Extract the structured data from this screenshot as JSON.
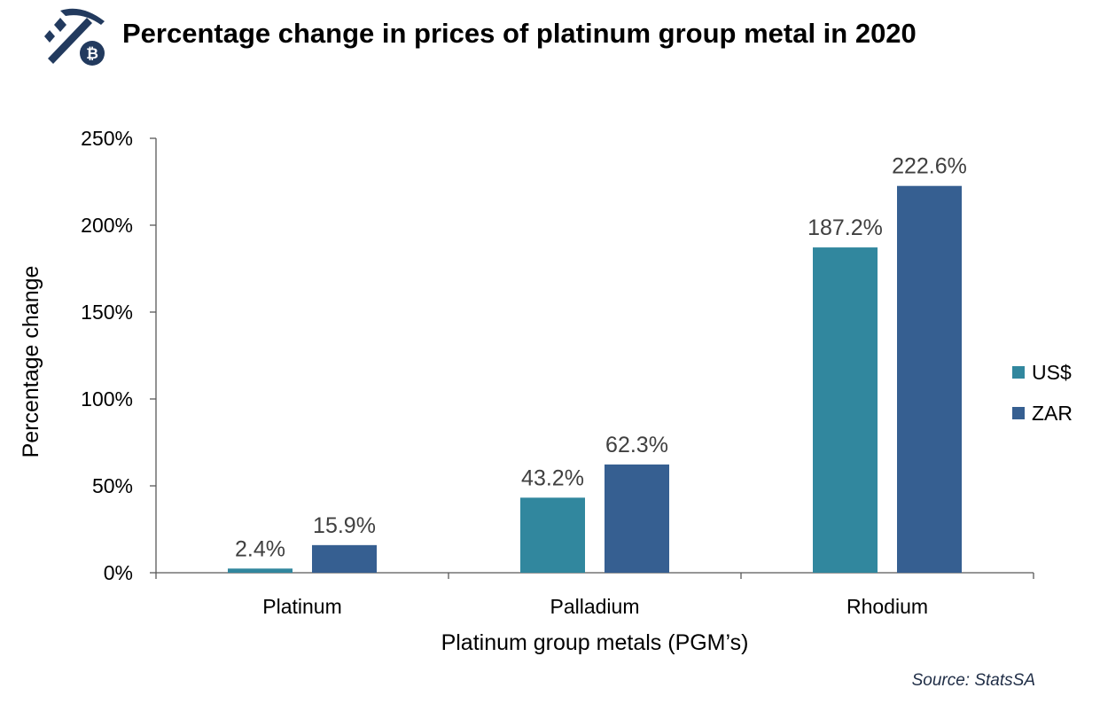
{
  "page": {
    "title": "Percentage change in prices of platinum group metal in 2020",
    "source": "Source: StatsSA",
    "logo_icon": "pickaxe-bitcoin-logo-icon"
  },
  "colors": {
    "usd": "#31879E",
    "zar": "#365F91",
    "axis": "#595959",
    "label": "#404040",
    "logo": "#223A5E"
  },
  "chart_data": {
    "type": "bar",
    "categories": [
      "Platinum",
      "Palladium",
      "Rhodium"
    ],
    "series": [
      {
        "name": "US$",
        "values": [
          2.4,
          43.2,
          187.2
        ],
        "labels": [
          "2.4%",
          "43.2%",
          "187.2%"
        ]
      },
      {
        "name": "ZAR",
        "values": [
          15.9,
          62.3,
          222.6
        ],
        "labels": [
          "15.9%",
          "62.3%",
          "222.6%"
        ]
      }
    ],
    "xlabel": "Platinum group metals (PGM’s)",
    "ylabel": "Percentage change",
    "ylim": [
      0,
      250
    ],
    "yticks": [
      0,
      50,
      100,
      150,
      200,
      250
    ],
    "ytick_labels": [
      "0%",
      "50%",
      "100%",
      "150%",
      "200%",
      "250%"
    ],
    "grid": false,
    "legend": "right"
  }
}
